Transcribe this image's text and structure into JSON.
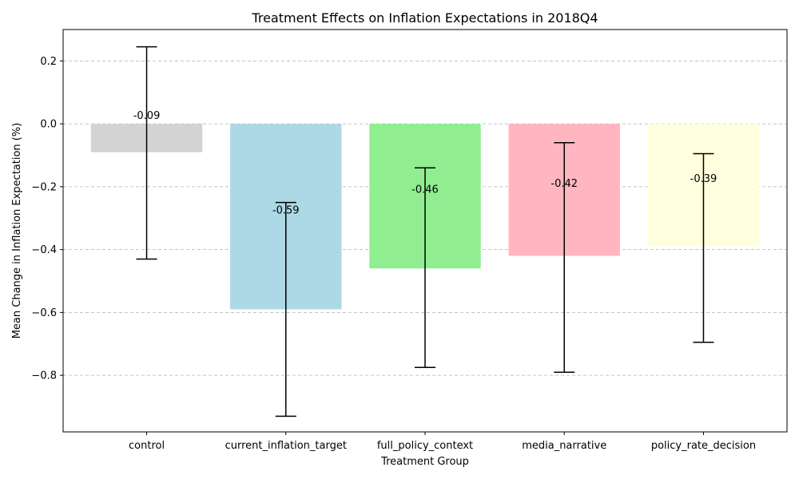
{
  "chart_data": {
    "type": "bar",
    "title": "Treatment Effects on Inflation Expectations in 2018Q4",
    "xlabel": "Treatment Group",
    "ylabel": "Mean Change in Inflation Expectation (%)",
    "categories": [
      "control",
      "current_inflation_target",
      "full_policy_context",
      "media_narrative",
      "policy_rate_decision"
    ],
    "values": [
      -0.09,
      -0.59,
      -0.46,
      -0.42,
      -0.39
    ],
    "value_labels": [
      "-0.09",
      "-0.59",
      "-0.46",
      "-0.42",
      "-0.39"
    ],
    "error_low": [
      -0.43,
      -0.93,
      -0.775,
      -0.79,
      -0.695
    ],
    "error_high": [
      0.245,
      -0.25,
      -0.14,
      -0.06,
      -0.095
    ],
    "colors": [
      "#d3d3d3",
      "#add8e6",
      "#90ee90",
      "#ffb6c1",
      "#ffffe0"
    ],
    "ylim": [
      -0.98,
      0.3
    ],
    "yticks": [
      0.2,
      0.0,
      -0.2,
      -0.4,
      -0.6,
      -0.8
    ],
    "ytick_labels": [
      "0.2",
      "0.0",
      "−0.2",
      "−0.4",
      "−0.6",
      "−0.8"
    ],
    "grid": "y-dashed",
    "legend": "none"
  }
}
